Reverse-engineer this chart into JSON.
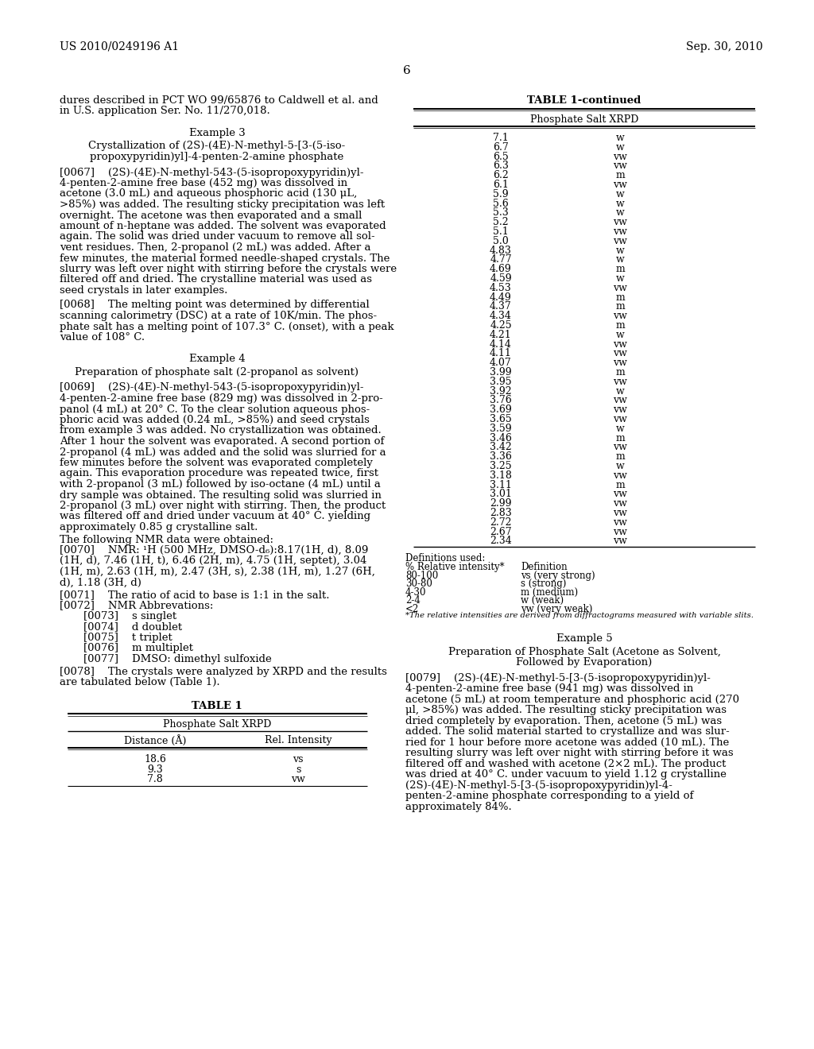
{
  "header_left": "US 2010/0249196 A1",
  "header_right": "Sep. 30, 2010",
  "page_number": "6",
  "background_color": "#ffffff",
  "text_color": "#000000",
  "left_column": {
    "intro_text": "dures described in PCT WO 99/65876 to Caldwell et al. and\nin U.S. application Ser. No. 11/270,018.",
    "example3_title": "Example 3",
    "example3_subtitle_line1": "Crystallization of (2S)-(4E)-N-methyl-5-[3-(5-iso-",
    "example3_subtitle_line2": "propoxypyridin)yl]-4-penten-2-amine phosphate",
    "example3_para067": "[0067]    (2S)-(4E)-N-methyl-543-(5-isopropoxypyridin)yl-4-penten-2-amine free base (452 mg) was dissolved in acetone (3.0 mL) and aqueous phosphoric acid (130 μL, >85%) was added. The resulting sticky precipitation was left overnight. The acetone was then evaporated and a small amount of n-heptane was added. The solvent was evaporated again. The solid was dried under vacuum to remove all sol-vent residues. Then, 2-propanol (2 mL) was added. After a few minutes, the material formed needle-shaped crystals. The slurry was left over night with stirring before the crystals were filtered off and dried. The crystalline material was used as seed crystals in later examples.",
    "example3_para068": "[0068]    The melting point was determined by differential scanning calorimetry (DSC) at a rate of 10K/min. The phos-phate salt has a melting point of 107.3° C. (onset), with a peak value of 108° C.",
    "example4_title": "Example 4",
    "example4_subtitle": "Preparation of phosphate salt (2-propanol as solvent)",
    "example4_para069": "[0069]    (2S)-(4E)-N-methyl-543-(5-isopropoxypyridin)yl-4-penten-2-amine free base (829 mg) was dissolved in 2-pro-panol (4 mL) at 20° C. To the clear solution aqueous phos-phoric acid was added (0.24 mL, >85%) and seed crystals from example 3 was added. No crystallization was obtained. After 1 hour the solvent was evaporated. A second portion of 2-propanol (4 mL) was added and the solid was slurried for a few minutes before the solvent was evaporated completely again. This evaporation procedure was repeated twice, first with 2-propanol (3 mL) followed by iso-octane (4 mL) until a dry sample was obtained. The resulting solid was slurried in 2-propanol (3 mL) over night with stirring. Then, the product was filtered off and dried under vacuum at 40° C. yielding approximately 0.85 g crystalline salt.",
    "example4_nmr_intro": "The following NMR data were obtained:",
    "example4_nmr": "[0070]    NMR: ¹H (500 MHz, DMSO-d₆):8.17(1H, d), 8.09 (1H, d), 7.46 (1H, t), 6.46 (2H, m), 4.75 (1H, septet), 3.04 (1H, m), 2.63 (1H, m), 2.47 (3H, s), 2.38 (1H, m), 1.27 (6H, d), 1.18 (3H, d)",
    "example4_para071": "[0071]    The ratio of acid to base is 1:1 in the salt.",
    "example4_para072": "[0072]    NMR Abbrevations:",
    "example4_abbrev073": "[0073]    s singlet",
    "example4_abbrev074": "[0074]    d doublet",
    "example4_abbrev075": "[0075]    t triplet",
    "example4_abbrev076": "[0076]    m multiplet",
    "example4_abbrev077": "[0077]    DMSO: dimethyl sulfoxide",
    "example4_para078": "[0078]    The crystals were analyzed by XRPD and the results are tabulated below (Table 1).",
    "table1_title": "TABLE 1",
    "table1_subtitle": "Phosphate Salt XRPD",
    "table1_col1_header": "Distance (Å)",
    "table1_col2_header": "Rel. Intensity",
    "table1_data": [
      [
        "18.6",
        "vs"
      ],
      [
        "9.3",
        "s"
      ],
      [
        "7.8",
        "vw"
      ]
    ]
  },
  "right_column": {
    "table1_continued_title": "TABLE 1-continued",
    "table1_continued_subtitle": "Phosphate Salt XRPD",
    "table1_continued_data": [
      [
        "7.1",
        "w"
      ],
      [
        "6.7",
        "w"
      ],
      [
        "6.5",
        "vw"
      ],
      [
        "6.3",
        "vw"
      ],
      [
        "6.2",
        "m"
      ],
      [
        "6.1",
        "vw"
      ],
      [
        "5.9",
        "w"
      ],
      [
        "5.6",
        "w"
      ],
      [
        "5.3",
        "w"
      ],
      [
        "5.2",
        "vw"
      ],
      [
        "5.1",
        "vw"
      ],
      [
        "5.0",
        "vw"
      ],
      [
        "4.83",
        "w"
      ],
      [
        "4.77",
        "w"
      ],
      [
        "4.69",
        "m"
      ],
      [
        "4.59",
        "w"
      ],
      [
        "4.53",
        "vw"
      ],
      [
        "4.49",
        "m"
      ],
      [
        "4.37",
        "m"
      ],
      [
        "4.34",
        "vw"
      ],
      [
        "4.25",
        "m"
      ],
      [
        "4.21",
        "w"
      ],
      [
        "4.14",
        "vw"
      ],
      [
        "4.11",
        "vw"
      ],
      [
        "4.07",
        "vw"
      ],
      [
        "3.99",
        "m"
      ],
      [
        "3.95",
        "vw"
      ],
      [
        "3.92",
        "w"
      ],
      [
        "3.76",
        "vw"
      ],
      [
        "3.69",
        "vw"
      ],
      [
        "3.65",
        "vw"
      ],
      [
        "3.59",
        "w"
      ],
      [
        "3.46",
        "m"
      ],
      [
        "3.42",
        "vw"
      ],
      [
        "3.36",
        "m"
      ],
      [
        "3.25",
        "w"
      ],
      [
        "3.18",
        "vw"
      ],
      [
        "3.11",
        "m"
      ],
      [
        "3.01",
        "vw"
      ],
      [
        "2.99",
        "vw"
      ],
      [
        "2.83",
        "vw"
      ],
      [
        "2.72",
        "vw"
      ],
      [
        "2.67",
        "vw"
      ],
      [
        "2.34",
        "vw"
      ]
    ],
    "definitions_title": "Definitions used:",
    "definitions": [
      [
        "% Relative intensity*",
        "Definition"
      ],
      [
        "80-100",
        "vs (very strong)"
      ],
      [
        "30-80",
        "s (strong)"
      ],
      [
        "4-30",
        "m (medium)"
      ],
      [
        "2-4",
        "w (weak)"
      ],
      [
        "<2",
        "vw (very weak)"
      ]
    ],
    "definitions_footnote": "*The relative intensities are derived from diffractograms measured with variable slits.",
    "example5_title": "Example 5",
    "example5_subtitle_line1": "Preparation of Phosphate Salt (Acetone as Solvent,",
    "example5_subtitle_line2": "Followed by Evaporation)",
    "example5_para079": "[0079]    (2S)-(4E)-N-methyl-5-[3-(5-isopropoxypyridin)yl-4-penten-2-amine free base (941 mg) was dissolved in acetone (5 mL) at room temperature and phosphoric acid (270 μl, >85%) was added. The resulting sticky precipitation was dried completely by evaporation. Then, acetone (5 mL) was added. The solid material started to crystallize and was slur-ried for 1 hour before more acetone was added (10 mL). The resulting slurry was left over night with stirring before it was filtered off and washed with acetone (2×2 mL). The product was dried at 40° C. under vacuum to yield 1.12 g crystalline (2S)-(4E)-N-methyl-5-[3-(5-isopropoxypyridin)yl-4-penten-2-amine phosphate corresponding to a yield of approximately 84%."
  }
}
